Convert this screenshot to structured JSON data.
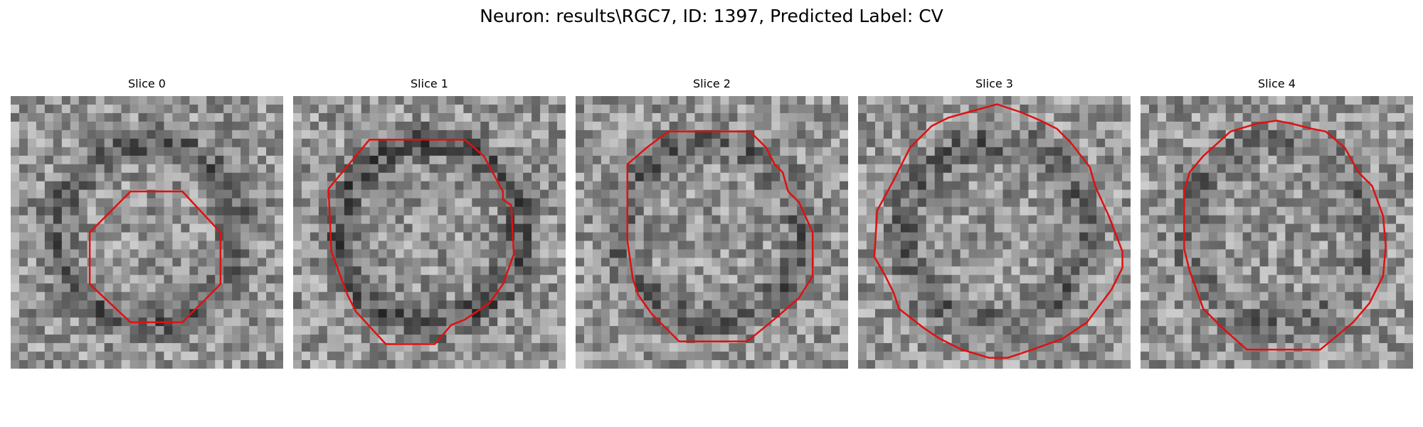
{
  "figure": {
    "title": "Neuron: results\\RGC7, ID: 1397, Predicted Label: CV"
  },
  "panels": [
    {
      "title": "Slice 0",
      "seed": 11,
      "ring": 0.8,
      "contour_color": "#e01010"
    },
    {
      "title": "Slice 1",
      "seed": 23,
      "ring": 0.9,
      "contour_color": "#e01010"
    },
    {
      "title": "Slice 2",
      "seed": 37,
      "ring": 0.7,
      "contour_color": "#e01010"
    },
    {
      "title": "Slice 3",
      "seed": 51,
      "ring": 0.7,
      "contour_color": "#e01010"
    },
    {
      "title": "Slice 4",
      "seed": 67,
      "ring": 0.5,
      "contour_color": "#e01010"
    }
  ]
}
